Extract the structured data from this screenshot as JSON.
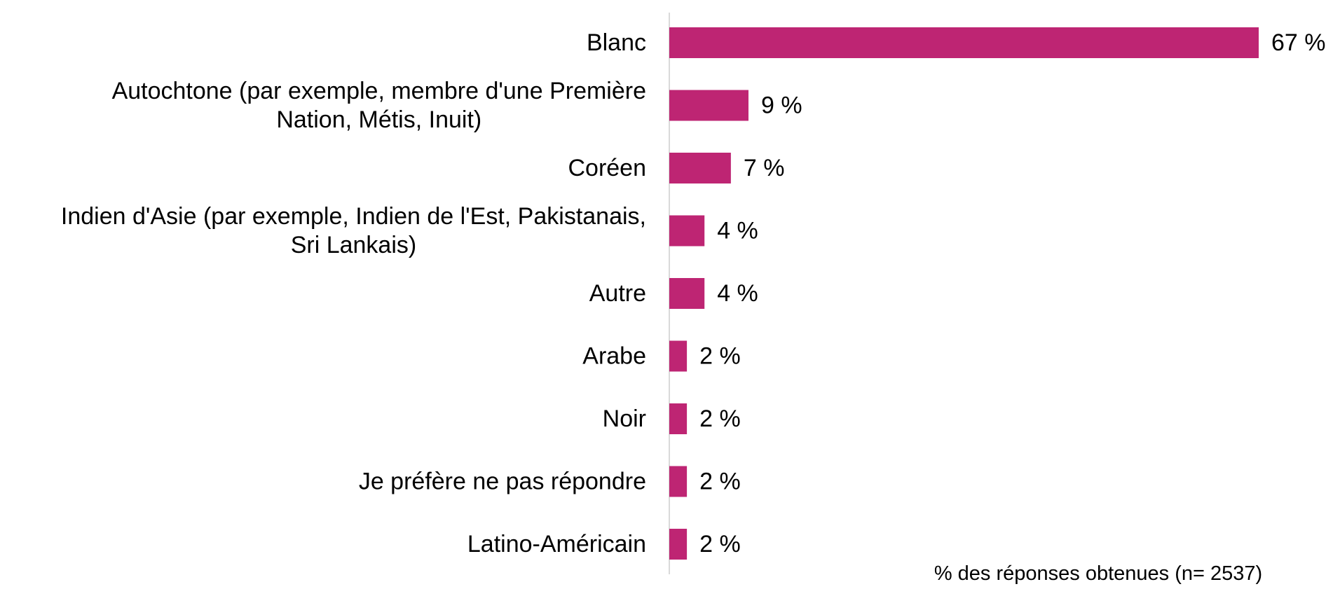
{
  "chart_data": {
    "type": "bar",
    "orientation": "horizontal",
    "categories": [
      [
        "Blanc"
      ],
      [
        "Autochtone (par exemple, membre d'une Première",
        "Nation, Métis, Inuit)"
      ],
      [
        "Coréen"
      ],
      [
        "Indien d'Asie (par exemple, Indien de l'Est, Pakistanais,",
        "Sri Lankais)"
      ],
      [
        "Autre"
      ],
      [
        "Arabe"
      ],
      [
        "Noir"
      ],
      [
        "Je préfère ne pas répondre"
      ],
      [
        "Latino-Américain"
      ]
    ],
    "values": [
      67,
      9,
      7,
      4,
      4,
      2,
      2,
      2,
      2
    ],
    "data_labels": [
      "67 %",
      "9 %",
      "7 %",
      "4 %",
      "4 %",
      "2 %",
      "2 %",
      "2 %",
      "2 %"
    ],
    "xlabel": "% des réponses obtenues (n= 2537)",
    "xlim": [
      0,
      67
    ],
    "bar_color": "#BE2573",
    "axis_color": "#D9D9D9",
    "grid": false,
    "legend": "none"
  }
}
